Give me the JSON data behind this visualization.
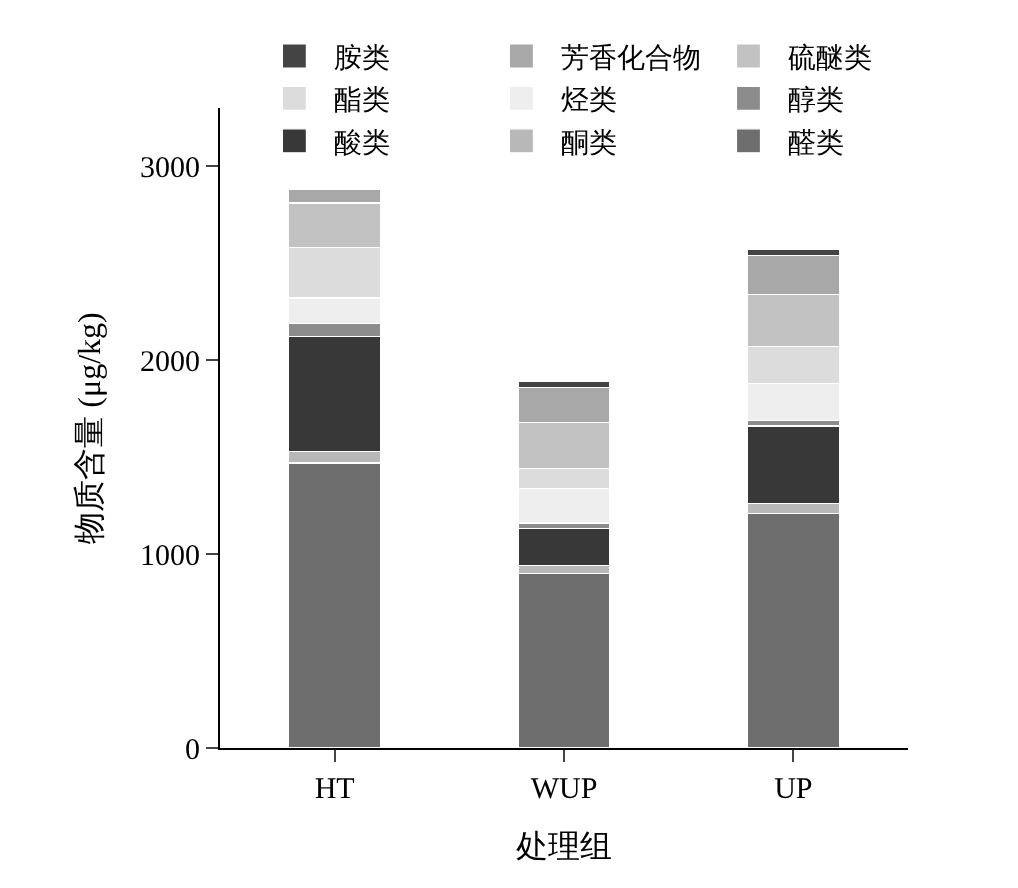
{
  "chart_data": {
    "type": "bar",
    "stacked": true,
    "xlabel": "处理组",
    "ylabel": "物质含量 (μg/kg)",
    "categories": [
      "HT",
      "WUP",
      "UP"
    ],
    "series": [
      {
        "name": "醛类",
        "color": "#6e6e6e",
        "values": [
          1470,
          900,
          1210
        ]
      },
      {
        "name": "酮类",
        "color": "#b8b8b8",
        "values": [
          60,
          40,
          50
        ]
      },
      {
        "name": "酸类",
        "color": "#383838",
        "values": [
          590,
          190,
          400
        ]
      },
      {
        "name": "醇类",
        "color": "#8c8c8c",
        "values": [
          70,
          30,
          30
        ]
      },
      {
        "name": "烃类",
        "color": "#eeeeee",
        "values": [
          130,
          180,
          190
        ]
      },
      {
        "name": "酯类",
        "color": "#dcdcdc",
        "values": [
          260,
          100,
          190
        ]
      },
      {
        "name": "硫醚类",
        "color": "#c2c2c2",
        "values": [
          230,
          240,
          270
        ]
      },
      {
        "name": "芳香化合物",
        "color": "#a8a8a8",
        "values": [
          70,
          180,
          200
        ]
      },
      {
        "name": "胺类",
        "color": "#444444",
        "values": [
          null,
          30,
          30
        ]
      }
    ],
    "ylim": [
      0,
      3300
    ],
    "yticks": [
      0,
      1000,
      2000,
      3000
    ],
    "legend": "top"
  }
}
